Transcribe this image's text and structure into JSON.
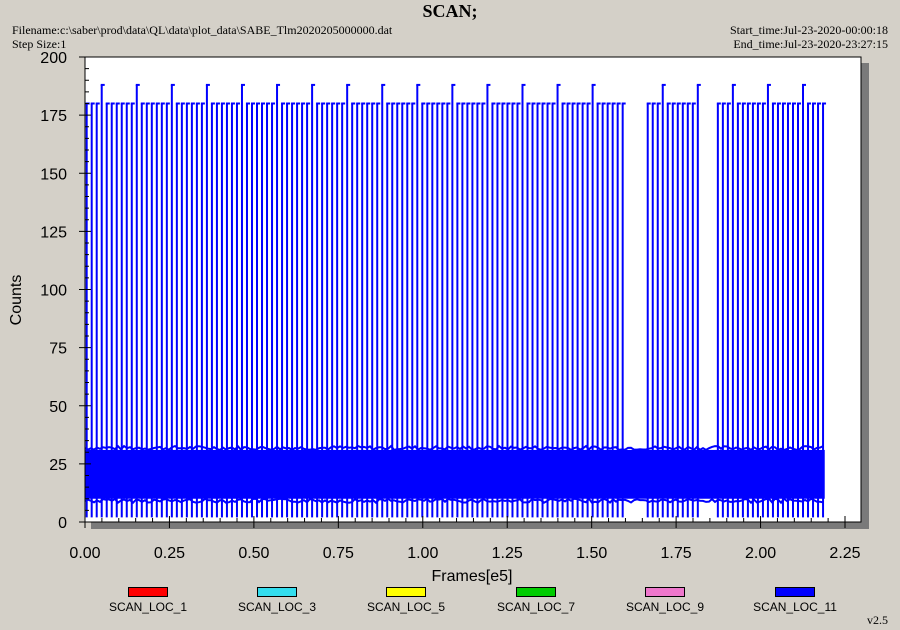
{
  "header": {
    "title": "SCAN;",
    "filename": "Filename:c:\\saber\\prod\\data\\QL\\data\\plot_data\\SABE_Tlm2020205000000.dat",
    "step_size": "Step Size:1",
    "start_time": "Start_time:Jul-23-2020-00:00:18",
    "end_time": "End_time:Jul-23-2020-23:27:15"
  },
  "version": "v2.5",
  "colors": {
    "background": "#d4d0c8",
    "plot_background": "#ffffff",
    "shadow": "#7a7a7a",
    "primary_series": "#0000ff"
  },
  "chart_data": {
    "type": "line",
    "title": "SCAN;",
    "xlabel": "Frames[e5]",
    "ylabel": "Counts",
    "xlim": [
      0.0,
      2.25
    ],
    "ylim": [
      0,
      200
    ],
    "x_ticks": [
      "0.00",
      "0.25",
      "0.50",
      "0.75",
      "1.00",
      "1.25",
      "1.50",
      "1.75",
      "2.00",
      "2.25"
    ],
    "y_ticks": [
      "0",
      "25",
      "50",
      "75",
      "100",
      "125",
      "150",
      "175",
      "200"
    ],
    "grid": false,
    "legend_position": "bottom",
    "series": [
      {
        "name": "SCAN_LOC_1",
        "color": "#ff0000",
        "values": []
      },
      {
        "name": "SCAN_LOC_3",
        "color": "#33ddee",
        "values": []
      },
      {
        "name": "SCAN_LOC_5",
        "color": "#ffff00",
        "values": []
      },
      {
        "name": "SCAN_LOC_7",
        "color": "#00cc00",
        "values": []
      },
      {
        "name": "SCAN_LOC_9",
        "color": "#ee77cc",
        "values": []
      },
      {
        "name": "SCAN_LOC_11",
        "color": "#0000ff",
        "x_range": [
          0.0,
          2.19
        ],
        "band": [
          10,
          30
        ],
        "scan_peak": 180,
        "scan_peak_max": 188,
        "scan_floor": 2,
        "approx_scan_count": 148,
        "late_region_scan_gaps": [
          [
            1.6,
            1.66
          ],
          [
            1.82,
            1.87
          ]
        ],
        "values": []
      }
    ]
  }
}
